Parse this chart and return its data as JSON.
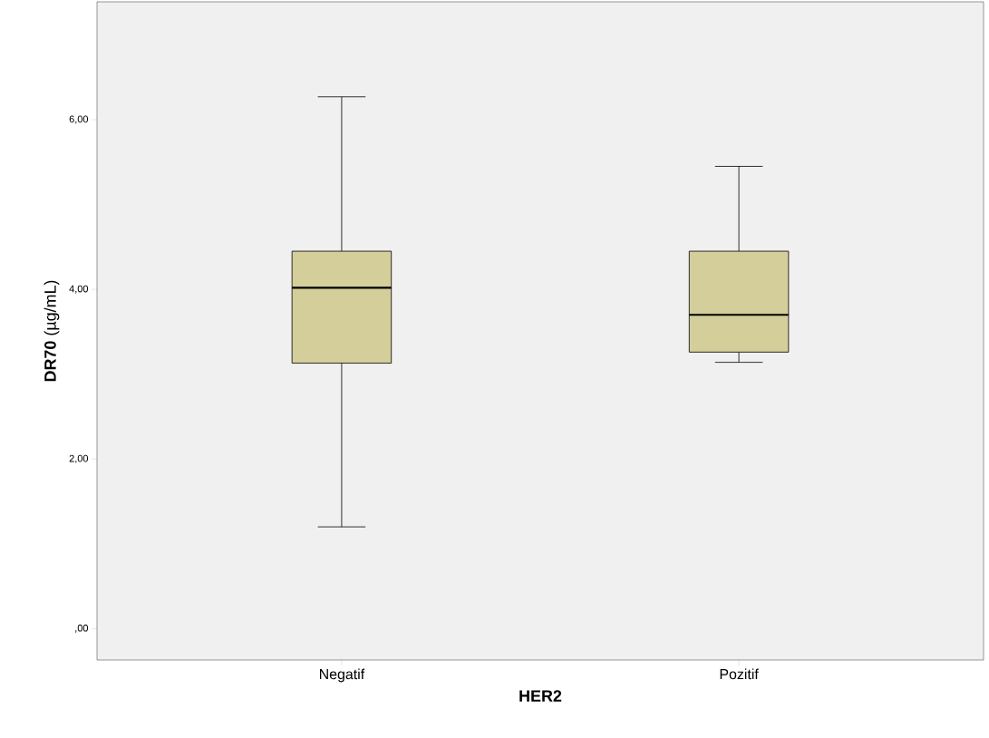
{
  "chart_data": {
    "type": "box",
    "xlabel": "HER2",
    "ylabel": "**DR70** (µg/mL)",
    "categories": [
      "Negatif",
      "Pozitif"
    ],
    "boxes": [
      {
        "low": 1.2,
        "q1": 3.13,
        "median": 4.02,
        "q3": 4.45,
        "high": 6.27
      },
      {
        "low": 3.14,
        "q1": 3.26,
        "median": 3.7,
        "q3": 4.45,
        "high": 5.45
      }
    ],
    "color": "#d3ce9a",
    "ylim": [
      -0.37,
      7.39
    ],
    "yticks": [
      {
        "value": 0,
        "label": ",00"
      },
      {
        "value": 2,
        "label": "2,00"
      },
      {
        "value": 4,
        "label": "4,00"
      },
      {
        "value": 6,
        "label": "6,00"
      }
    ]
  }
}
